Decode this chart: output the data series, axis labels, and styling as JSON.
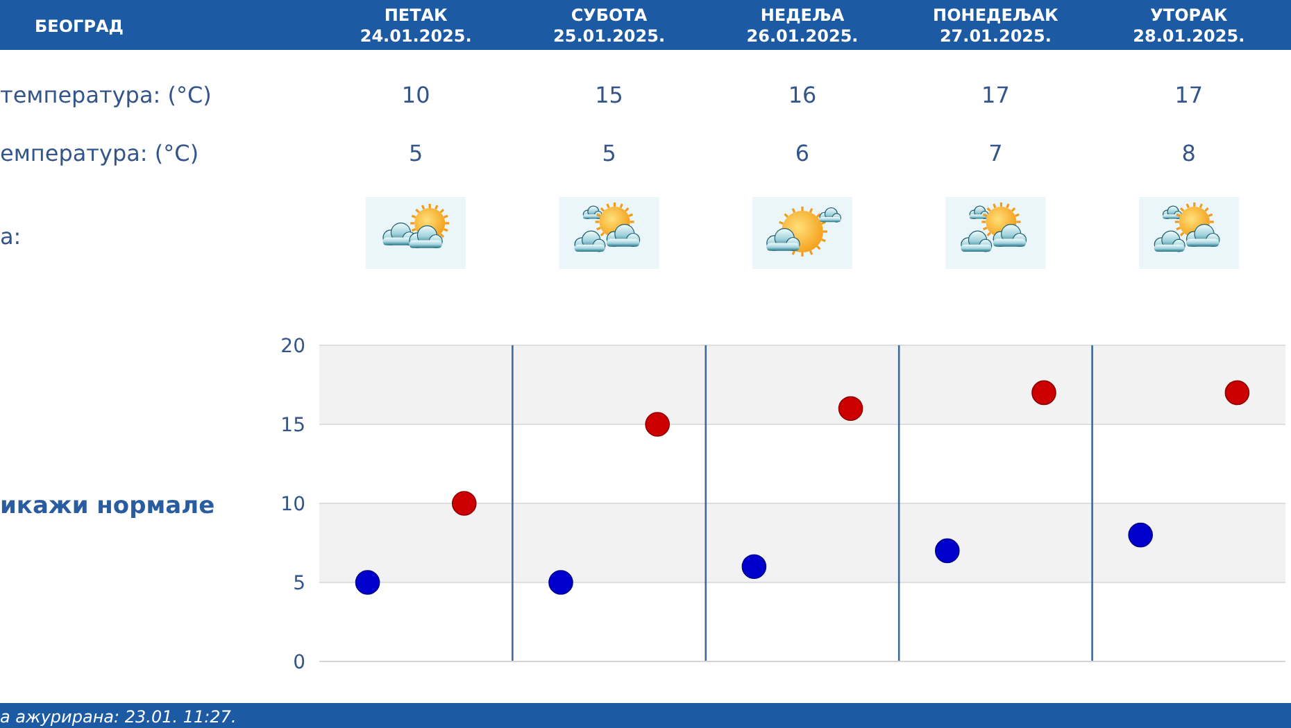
{
  "chart_data": {
    "type": "scatter",
    "title": "БЕОГРАД",
    "categories": [
      null,
      null,
      null,
      null,
      null
    ],
    "series": [
      {
        "color": "#0000cc",
        "values": [
          5,
          5,
          6,
          7,
          8
        ]
      },
      {
        "color": "#cc0000",
        "values": [
          10,
          15,
          16,
          17,
          17
        ]
      }
    ],
    "ylim": [
      0,
      20
    ],
    "yticks": [
      0,
      5,
      10,
      15,
      20
    ],
    "grid": true,
    "marker": "circle",
    "data_labels": true,
    "bands": [
      {
        "axis": "y",
        "from": 5,
        "to": 10,
        "color": "#f2f2f2"
      },
      {
        "axis": "y",
        "from": 15,
        "to": 20,
        "color": "#f2f2f2"
      }
    ],
    "annotations": [
      "ПЕТАК\n24.01.2025.",
      "СУБОТА\n25.01.2025.",
      "НЕДЕЉА\n26.01.2025.",
      "ПОНЕДЕЉАК\n27.01.2025.",
      "УТОРАК\n28.01.2025.",
      "температура: (°C)",
      "емпература: (°C)",
      "а:",
      "икажи нормале",
      "а ажурирана: 23.01. 11:27."
    ]
  }
}
